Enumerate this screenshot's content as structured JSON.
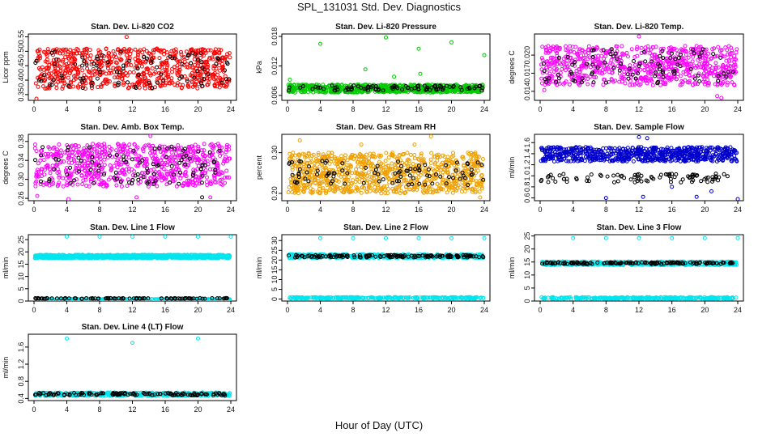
{
  "figure": {
    "title": "SPL_131031  Std. Dev. Diagnostics",
    "xlabel": "Hour of Day (UTC)"
  },
  "chart_data": [
    {
      "type": "scatter",
      "title": "Stan. Dev. Li-820 CO2",
      "ylabel": "Licor ppm",
      "xlim": [
        0,
        24
      ],
      "ylim": [
        0.33,
        0.56
      ],
      "xticks": [
        0,
        4,
        8,
        12,
        16,
        20,
        24
      ],
      "yticks": [
        0.35,
        0.4,
        0.45,
        0.5,
        0.55
      ],
      "ytick_labels": [
        "0.35",
        "0.40",
        "0.45",
        "0.50",
        "0.55"
      ],
      "series": [
        {
          "color": "#ff0000",
          "count": 700,
          "band": [
            0.37,
            0.51
          ],
          "outliers": [
            [
              11.3,
              0.55
            ],
            [
              0.3,
              0.33
            ]
          ]
        },
        {
          "color": "#000000",
          "count": 90,
          "band": [
            0.37,
            0.5
          ],
          "outliers": []
        }
      ]
    },
    {
      "type": "scatter",
      "title": "Stan. Dev. Li-820 Pressure",
      "ylabel": "kPa",
      "xlim": [
        0,
        24
      ],
      "ylim": [
        0.005,
        0.0185
      ],
      "xticks": [
        0,
        4,
        8,
        12,
        16,
        20,
        24
      ],
      "yticks": [
        0.006,
        0.012,
        0.018
      ],
      "ytick_labels": [
        "0.006",
        "0.012",
        "0.018"
      ],
      "series": [
        {
          "color": "#00cc00",
          "count": 700,
          "band": [
            0.0066,
            0.0082
          ],
          "outliers": [
            [
              4,
              0.0165
            ],
            [
              9.5,
              0.0113
            ],
            [
              12,
              0.0178
            ],
            [
              16,
              0.0155
            ],
            [
              20,
              0.0168
            ],
            [
              24,
              0.0142
            ],
            [
              0.3,
              0.0092
            ],
            [
              13,
              0.0098
            ],
            [
              16.2,
              0.0104
            ]
          ]
        },
        {
          "color": "#000000",
          "count": 90,
          "band": [
            0.007,
            0.008
          ],
          "outliers": []
        }
      ]
    },
    {
      "type": "scatter",
      "title": "Stan. Dev. Li-820 Temp.",
      "ylabel": "degrees C",
      "xlim": [
        0,
        24
      ],
      "ylim": [
        0.0125,
        0.0235
      ],
      "xticks": [
        0,
        4,
        8,
        12,
        16,
        20,
        24
      ],
      "yticks": [
        0.014,
        0.017,
        0.02
      ],
      "ytick_labels": [
        "0.014",
        "0.017",
        "0.020"
      ],
      "series": [
        {
          "color": "#ff00ff",
          "count": 700,
          "band": [
            0.015,
            0.0215
          ],
          "outliers": [
            [
              21.5,
              0.0132
            ],
            [
              22,
              0.0129
            ],
            [
              12,
              0.0231
            ],
            [
              0.5,
              0.0142
            ]
          ]
        },
        {
          "color": "#000000",
          "count": 90,
          "band": [
            0.015,
            0.021
          ],
          "outliers": []
        }
      ]
    },
    {
      "type": "scatter",
      "title": "Stan. Dev. Amb. Box Temp.",
      "ylabel": "degrees C",
      "xlim": [
        0,
        24
      ],
      "ylim": [
        0.255,
        0.395
      ],
      "xticks": [
        0,
        4,
        8,
        12,
        16,
        20,
        24
      ],
      "yticks": [
        0.26,
        0.3,
        0.34,
        0.38
      ],
      "ytick_labels": [
        "0.26",
        "0.30",
        "0.34",
        "0.38"
      ],
      "series": [
        {
          "color": "#ff00ff",
          "count": 700,
          "band": [
            0.285,
            0.375
          ],
          "outliers": [
            [
              4.2,
              0.258
            ],
            [
              12.5,
              0.262
            ],
            [
              21.5,
              0.262
            ],
            [
              0.4,
              0.265
            ],
            [
              14.2,
              0.392
            ]
          ]
        },
        {
          "color": "#000000",
          "count": 90,
          "band": [
            0.29,
            0.37
          ],
          "outliers": [
            [
              20.5,
              0.262
            ]
          ]
        }
      ]
    },
    {
      "type": "scatter",
      "title": "Stan. Dev. Gas Stream RH",
      "ylabel": "percent",
      "xlim": [
        0,
        24
      ],
      "ylim": [
        0.182,
        0.345
      ],
      "xticks": [
        0,
        4,
        8,
        12,
        16,
        20,
        24
      ],
      "yticks": [
        0.2,
        0.3
      ],
      "ytick_labels": [
        "0.20",
        "0.30"
      ],
      "series": [
        {
          "color": "#f0a000",
          "count": 900,
          "band": [
            0.2,
            0.3
          ],
          "outliers": [
            [
              17.5,
              0.34
            ],
            [
              1.5,
              0.33
            ],
            [
              9,
              0.32
            ],
            [
              15.5,
              0.32
            ],
            [
              23.5,
              0.19
            ]
          ]
        },
        {
          "color": "#000000",
          "count": 90,
          "band": [
            0.22,
            0.28
          ],
          "outliers": []
        }
      ]
    },
    {
      "type": "scatter",
      "title": "Stan. Dev. Sample Flow",
      "ylabel": "ml/min",
      "xlim": [
        0,
        24
      ],
      "ylim": [
        0.55,
        1.75
      ],
      "xticks": [
        0,
        4,
        8,
        12,
        16,
        20,
        24
      ],
      "yticks": [
        0.6,
        0.8,
        1.0,
        1.2,
        1.4,
        1.6
      ],
      "ytick_labels": [
        "0.6",
        "0.8",
        "1.0",
        "1.2",
        "1.4",
        "1.6"
      ],
      "series": [
        {
          "color": "#0000cc",
          "count": 700,
          "band": [
            1.26,
            1.52
          ],
          "outliers": [
            [
              8,
              0.6
            ],
            [
              12.5,
              0.62
            ],
            [
              16,
              0.8
            ],
            [
              19,
              0.62
            ],
            [
              24,
              0.58
            ],
            [
              20.8,
              0.72
            ],
            [
              12,
              1.7
            ],
            [
              13,
              1.68
            ]
          ]
        },
        {
          "color": "#000000",
          "count": 90,
          "band": [
            0.88,
            1.04
          ],
          "outliers": []
        }
      ]
    },
    {
      "type": "scatter",
      "title": "Stan. Dev. Line 1 Flow",
      "ylabel": "ml/min",
      "xlim": [
        0,
        24
      ],
      "ylim": [
        0,
        27
      ],
      "xticks": [
        0,
        4,
        8,
        12,
        16,
        20,
        24
      ],
      "yticks": [
        0,
        5,
        10,
        15,
        20,
        25
      ],
      "ytick_labels": [
        "0",
        "5",
        "10",
        "15",
        "20",
        "25"
      ],
      "series": [
        {
          "color": "#00e5ee",
          "count": 900,
          "band": [
            17.4,
            18.8
          ],
          "outliers": [
            [
              4,
              26.2
            ],
            [
              8,
              26.2
            ],
            [
              12,
              26.2
            ],
            [
              16,
              26.2
            ],
            [
              20,
              26.2
            ],
            [
              24,
              26.2
            ]
          ]
        },
        {
          "color": "#00e5ee",
          "count": 250,
          "band": [
            0.3,
            0.9
          ],
          "outliers": []
        },
        {
          "color": "#000000",
          "count": 90,
          "band": [
            0.9,
            1.2
          ],
          "outliers": []
        }
      ]
    },
    {
      "type": "scatter",
      "title": "Stan. Dev. Line 2 Flow",
      "ylabel": "ml/min",
      "xlim": [
        0,
        24
      ],
      "ylim": [
        -1,
        33
      ],
      "xticks": [
        0,
        4,
        8,
        12,
        16,
        20,
        24
      ],
      "yticks": [
        0,
        5,
        10,
        15,
        20,
        25,
        30
      ],
      "ytick_labels": [
        "0",
        "5",
        "10",
        "15",
        "20",
        "25",
        "30"
      ],
      "series": [
        {
          "color": "#00e5ee",
          "count": 500,
          "band": [
            21.0,
            23.0
          ],
          "outliers": [
            [
              4,
              31.2
            ],
            [
              8,
              31.2
            ],
            [
              12,
              31.2
            ],
            [
              16,
              31.2
            ],
            [
              20,
              31.2
            ],
            [
              24,
              31.2
            ]
          ]
        },
        {
          "color": "#00e5ee",
          "count": 300,
          "band": [
            0.3,
            1.0
          ],
          "outliers": []
        },
        {
          "color": "#000000",
          "count": 150,
          "band": [
            21.3,
            22.6
          ],
          "outliers": []
        }
      ]
    },
    {
      "type": "scatter",
      "title": "Stan. Dev. Line 3 Flow",
      "ylabel": "ml/min",
      "xlim": [
        0,
        24
      ],
      "ylim": [
        0,
        25.5
      ],
      "xticks": [
        0,
        4,
        8,
        12,
        16,
        20,
        24
      ],
      "yticks": [
        0,
        5,
        10,
        15,
        20,
        25
      ],
      "ytick_labels": [
        "0",
        "5",
        "10",
        "15",
        "20",
        "25"
      ],
      "series": [
        {
          "color": "#00e5ee",
          "count": 450,
          "band": [
            13.8,
            15.2
          ],
          "outliers": [
            [
              4,
              24.2
            ],
            [
              8,
              24.2
            ],
            [
              12,
              24.2
            ],
            [
              16,
              24.2
            ],
            [
              20,
              24.2
            ],
            [
              24,
              24.2
            ]
          ]
        },
        {
          "color": "#00e5ee",
          "count": 300,
          "band": [
            0.8,
            1.5
          ],
          "outliers": []
        },
        {
          "color": "#000000",
          "count": 150,
          "band": [
            14.2,
            14.9
          ],
          "outliers": []
        }
      ]
    },
    {
      "type": "scatter",
      "title": "Stan. Dev. Line 4 (LT) Flow",
      "ylabel": "ml/min",
      "xlim": [
        0,
        24
      ],
      "ylim": [
        0.35,
        1.9
      ],
      "xticks": [
        0,
        4,
        8,
        12,
        16,
        20,
        24
      ],
      "yticks": [
        0.4,
        0.8,
        1.2,
        1.6
      ],
      "ytick_labels": [
        "0.4",
        "0.8",
        "1.2",
        "1.6"
      ],
      "series": [
        {
          "color": "#00e5ee",
          "count": 400,
          "band": [
            0.46,
            0.54
          ],
          "outliers": [
            [
              4,
              1.8
            ],
            [
              12,
              1.7
            ],
            [
              20,
              1.8
            ]
          ]
        },
        {
          "color": "#000000",
          "count": 120,
          "band": [
            0.47,
            0.53
          ],
          "outliers": []
        }
      ]
    }
  ]
}
